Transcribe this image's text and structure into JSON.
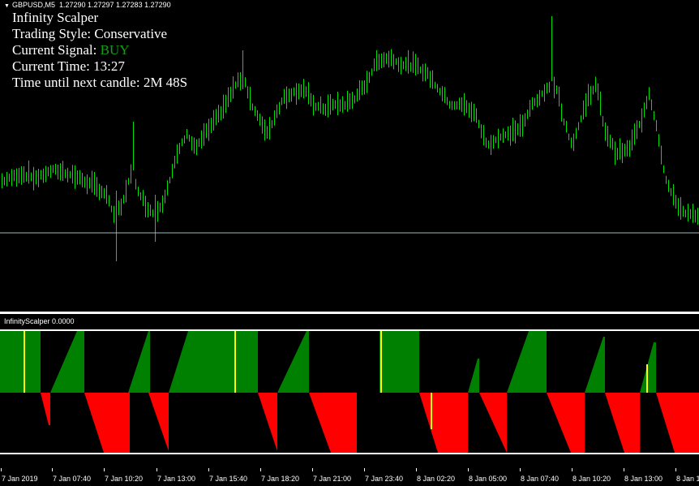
{
  "header": {
    "symbol": "GBPUSD,M5",
    "prices": "1.27290 1.27297 1.27283 1.27290"
  },
  "info_panel": {
    "title": "Infinity Scalper",
    "style_label": "Trading Style:",
    "style_value": "Conservative",
    "signal_label": "Current Signal:",
    "signal_value": "BUY",
    "time_label": "Current Time:",
    "time_value": "13:27",
    "next_label": "Time until next candle:",
    "next_value": "2M 48S"
  },
  "indicator": {
    "title": "InfinityScalper 0.0000"
  },
  "time_axis": {
    "labels": [
      "7 Jan 2019",
      "7 Jan 07:40",
      "7 Jan 10:20",
      "7 Jan 13:00",
      "7 Jan 15:40",
      "7 Jan 18:20",
      "7 Jan 21:00",
      "7 Jan 23:40",
      "8 Jan 02:20",
      "8 Jan 05:00",
      "8 Jan 07:40",
      "8 Jan 10:20",
      "8 Jan 13:00",
      "8 Jan 1"
    ]
  },
  "colors": {
    "background": "#000000",
    "price_bars": "#00e000",
    "buy_region": "#008000",
    "sell_region": "#ff0000",
    "signal_marker": "#ffff00",
    "signal_text": "#10a010",
    "level_line": "#ffffff"
  }
}
